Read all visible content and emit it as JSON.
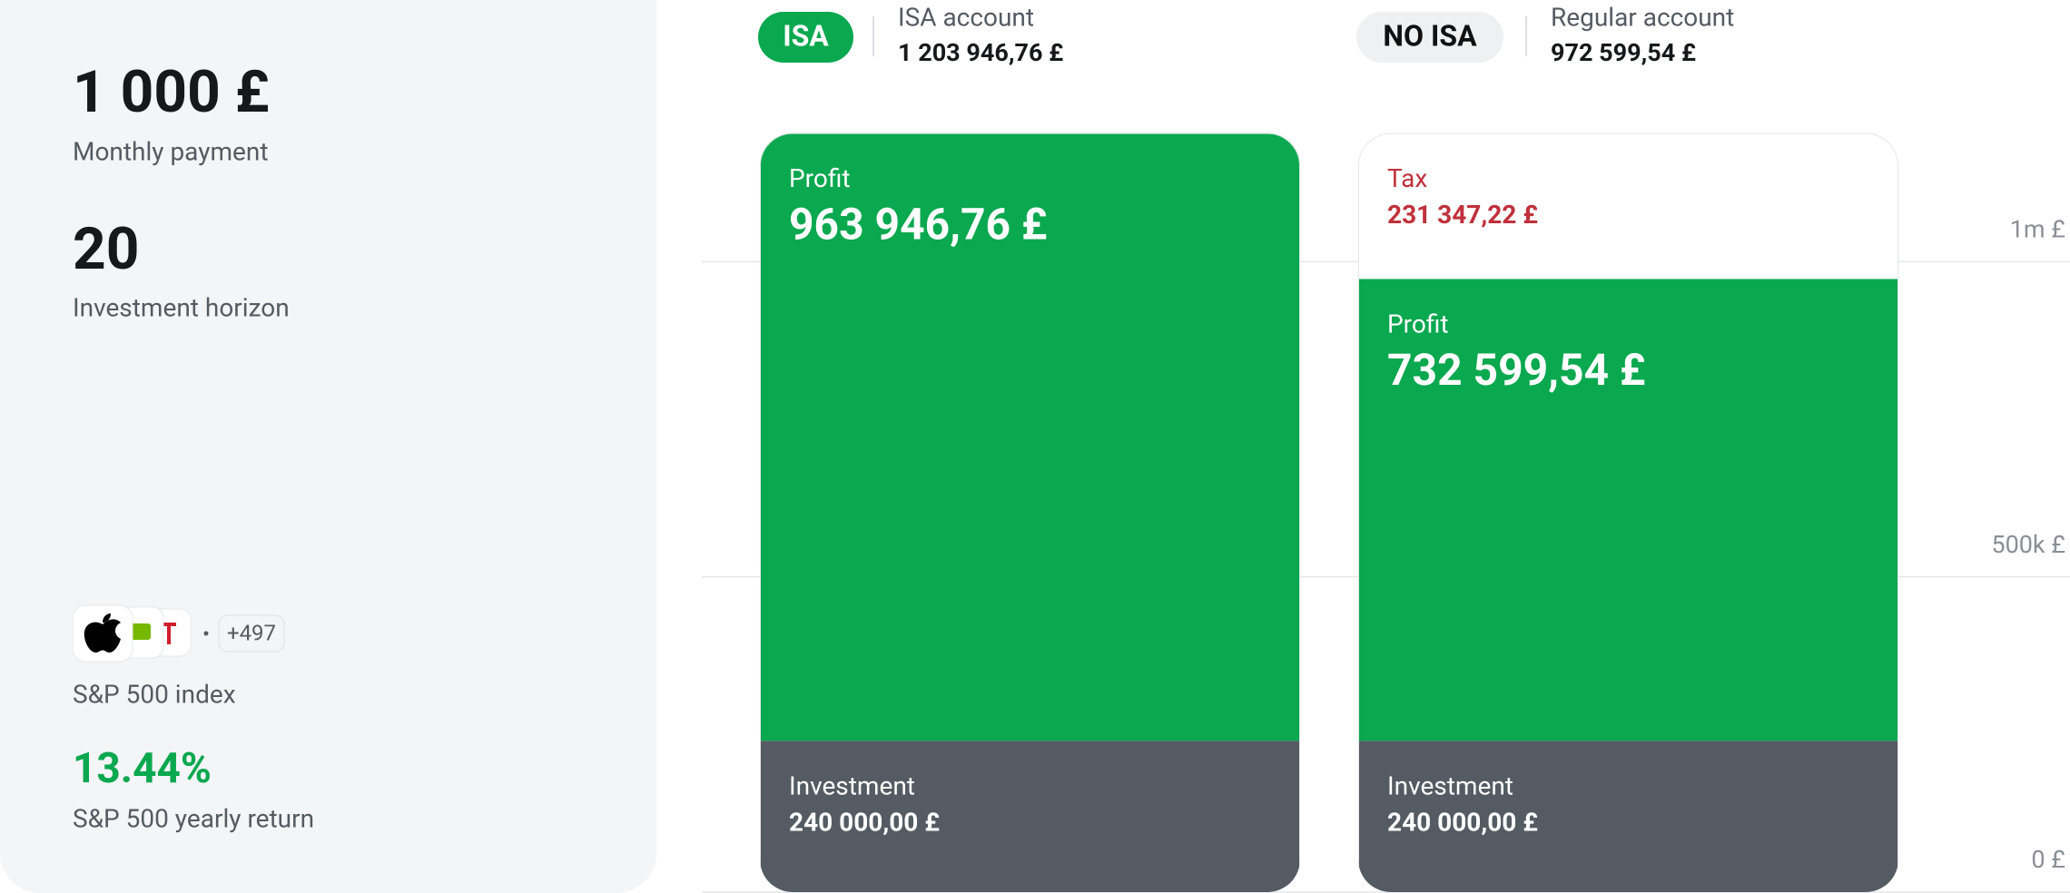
{
  "sidebar": {
    "monthly_payment": "1 000 £",
    "monthly_payment_label": "Monthly payment",
    "horizon": "20",
    "horizon_label": "Investment horizon",
    "more_count": "+497",
    "index_label": "S&P 500 index",
    "yearly_return": "13.44%",
    "yearly_return_label": "S&P 500 yearly return"
  },
  "chart_data": {
    "type": "stacked-bar",
    "categories": [
      "ISA",
      "NO ISA"
    ],
    "accounts": [
      {
        "name": "ISA account",
        "total": "1 203 946,76 £"
      },
      {
        "name": "Regular account",
        "total": "972 599,54 £"
      }
    ],
    "series": [
      {
        "name": "Investment",
        "color": "#545b62",
        "values": [
          240000,
          240000
        ],
        "value_labels": [
          "240 000,00 £",
          "240 000,00 £"
        ]
      },
      {
        "name": "Profit",
        "color": "#0aa84f",
        "values": [
          963946.76,
          732599.54
        ],
        "value_labels": [
          "963 946,76 £",
          "732 599,54 £"
        ]
      },
      {
        "name": "Tax",
        "color": "#ffffff",
        "values": [
          null,
          231347.22
        ],
        "value_labels": [
          null,
          "231 347,22 £"
        ]
      }
    ],
    "ylim": [
      0,
      1415000
    ],
    "yticks": [
      {
        "value": 0,
        "label": "0 £"
      },
      {
        "value": 500000,
        "label": "500k £"
      },
      {
        "value": 1000000,
        "label": "1m £"
      }
    ],
    "grid": true
  }
}
